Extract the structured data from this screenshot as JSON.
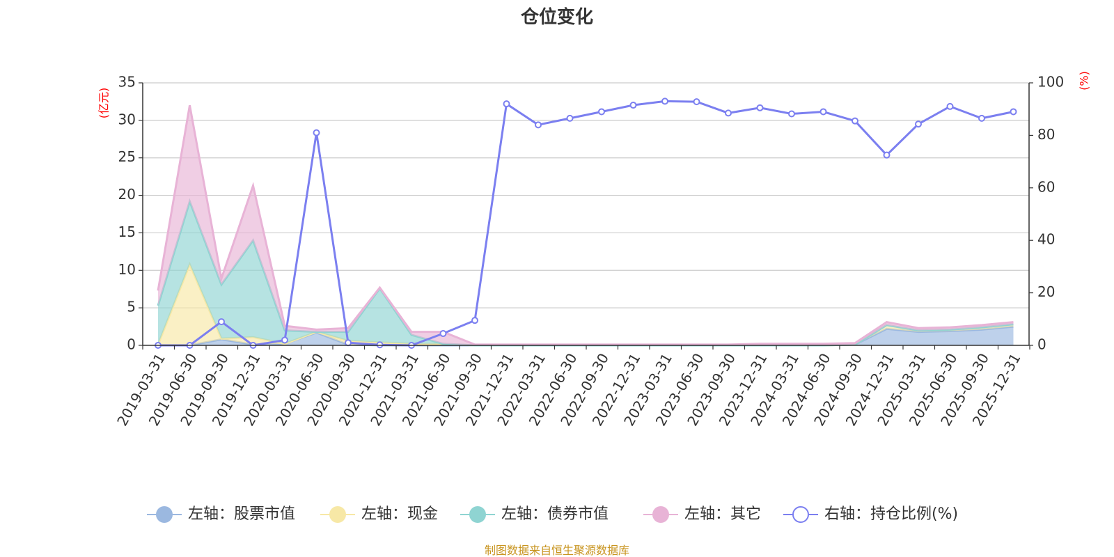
{
  "chart_data": {
    "type": "area",
    "title": "仓位变化",
    "left_axis_unit": "(亿元)",
    "right_axis_unit": "(%)",
    "ylim_left": [
      0,
      35
    ],
    "left_ticks": [
      "0",
      "5",
      "10",
      "15",
      "20",
      "25",
      "30",
      "35"
    ],
    "ylim_right": [
      0,
      100
    ],
    "right_ticks": [
      "0",
      "20",
      "40",
      "60",
      "80",
      "100"
    ],
    "categories": [
      "2019-03-31",
      "2019-06-30",
      "2019-09-30",
      "2019-12-31",
      "2020-03-31",
      "2020-06-30",
      "2020-09-30",
      "2020-12-31",
      "2021-03-31",
      "2021-06-30",
      "2021-09-30",
      "2021-12-31",
      "2022-03-31",
      "2022-06-30",
      "2022-09-30",
      "2022-12-31",
      "2023-03-31",
      "2023-06-30",
      "2023-09-30",
      "2023-12-31",
      "2024-03-31",
      "2024-06-30",
      "2024-09-30",
      "2024-12-31",
      "2025-03-31",
      "2025-06-30",
      "2025-09-30",
      "2025-12-31"
    ],
    "stacked_series": [
      {
        "name": "左轴：股票市值",
        "color": "#9bb8e0",
        "values": [
          0,
          0,
          0.8,
          0.1,
          0.2,
          1.7,
          0.1,
          0,
          0,
          0,
          0,
          0,
          0,
          0,
          0,
          0,
          0,
          0,
          0,
          0,
          0,
          0,
          0.1,
          2.2,
          1.8,
          1.9,
          2.1,
          2.5
        ]
      },
      {
        "name": "左轴：现金",
        "color": "#f7e8a6",
        "values": [
          0.1,
          10.8,
          0.1,
          1.0,
          0,
          0.1,
          0.5,
          0.4,
          0.2,
          0.2,
          0,
          0,
          0,
          0,
          0,
          0,
          0,
          0,
          0,
          0,
          0,
          0,
          0,
          0.5,
          0.2,
          0.2,
          0.3,
          0.3
        ]
      },
      {
        "name": "左轴：债券市值",
        "color": "#8fd4d2",
        "values": [
          5.2,
          8.4,
          7.2,
          12.9,
          1.8,
          0,
          1.2,
          7.2,
          1.2,
          0,
          0,
          0,
          0,
          0,
          0,
          0,
          0,
          0,
          0,
          0,
          0,
          0,
          0,
          0,
          0,
          0,
          0,
          0
        ]
      },
      {
        "name": "左轴：其它",
        "color": "#e8b3d6",
        "values": [
          2.0,
          12.8,
          0.8,
          7.3,
          0.6,
          0.3,
          0.5,
          0.1,
          0.4,
          1.6,
          0.1,
          0.1,
          0.1,
          0.1,
          0.1,
          0.1,
          0.1,
          0.1,
          0.1,
          0.2,
          0.2,
          0.2,
          0.2,
          0.4,
          0.3,
          0.3,
          0.3,
          0.3
        ]
      }
    ],
    "line_series": {
      "name": "右轴：持仓比例(%)",
      "color": "#7b7ff0",
      "values": [
        0,
        0,
        9,
        0,
        2,
        81,
        1,
        0.2,
        0,
        4.5,
        9.5,
        92,
        84,
        86.5,
        89,
        91.5,
        93,
        92.8,
        88.5,
        90.5,
        88.2,
        89,
        85.5,
        72.5,
        84.3,
        91,
        86.5,
        89
      ]
    },
    "legend_position": "bottom-center"
  },
  "footer": {
    "source": "制图数据来自恒生聚源数据库"
  }
}
